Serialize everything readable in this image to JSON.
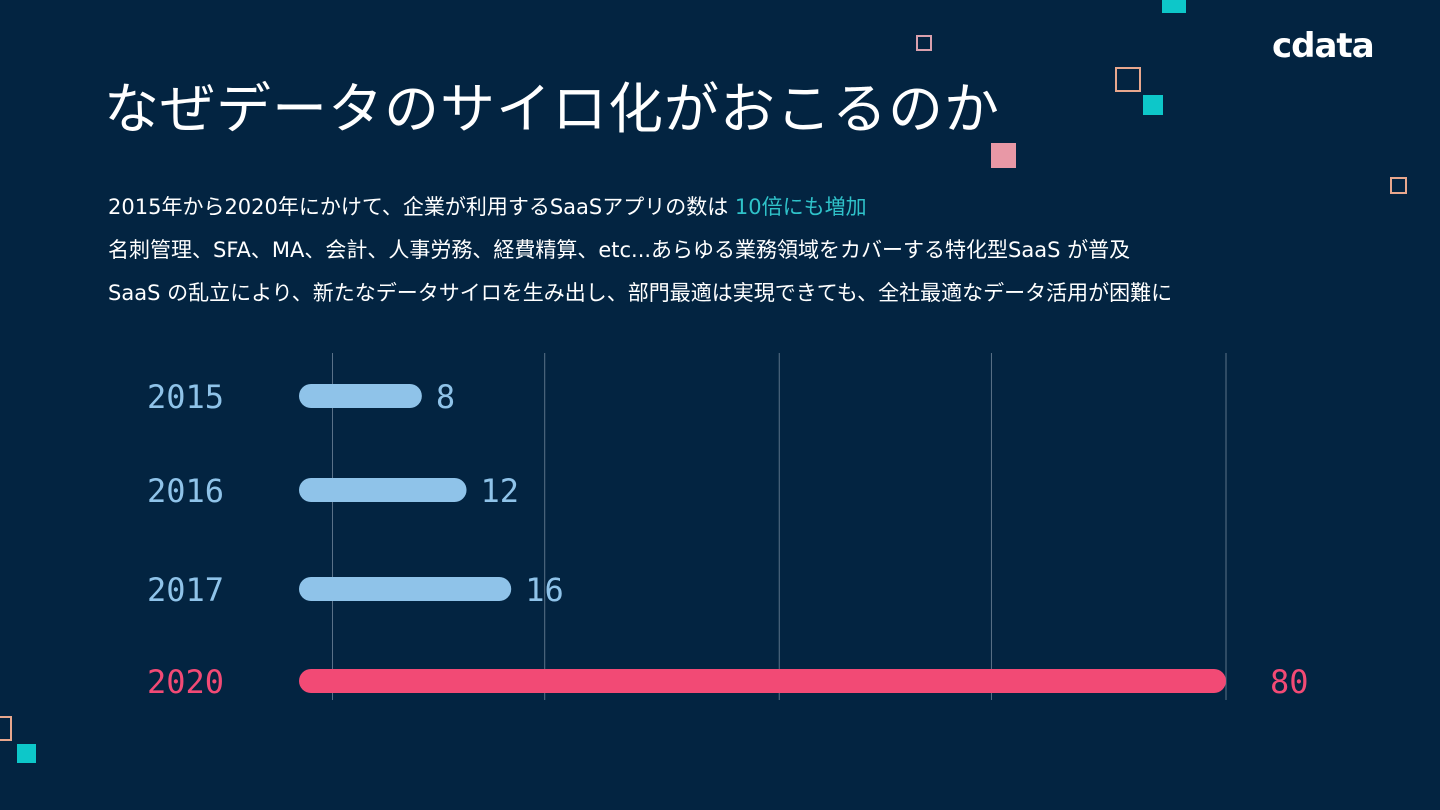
{
  "brand": {
    "logo_text": "cdata"
  },
  "title": "なぜデータのサイロ化がおこるのか",
  "lead": {
    "line1_prefix": "2015年から2020年にかけて、企業が利用するSaaSアプリの数は ",
    "line1_highlight": "10倍にも増加",
    "line2": "名刺管理、SFA、MA、会計、人事労務、経費精算、etc...あらゆる業務領域をカバーする特化型SaaS が普及",
    "line3": "SaaS の乱立により、新たなデータサイロを生み出し、部門最適は実現できても、全社最適なデータ活用が困難に"
  },
  "colors": {
    "background": "#032441",
    "bar_normal": "#8fc3e9",
    "bar_highlight": "#f24a75",
    "gridline": "#5b7288",
    "highlight_text": "#2fc2c9"
  },
  "chart_data": {
    "type": "bar",
    "orientation": "horizontal",
    "categories": [
      "2015",
      "2016",
      "2017",
      "2020"
    ],
    "values": [
      8,
      12,
      16,
      80
    ],
    "highlight_category": "2020",
    "xlim": [
      -3,
      80
    ],
    "gridlines_at": [
      0,
      19,
      40,
      59,
      80
    ],
    "title": "",
    "xlabel": "",
    "ylabel": ""
  }
}
